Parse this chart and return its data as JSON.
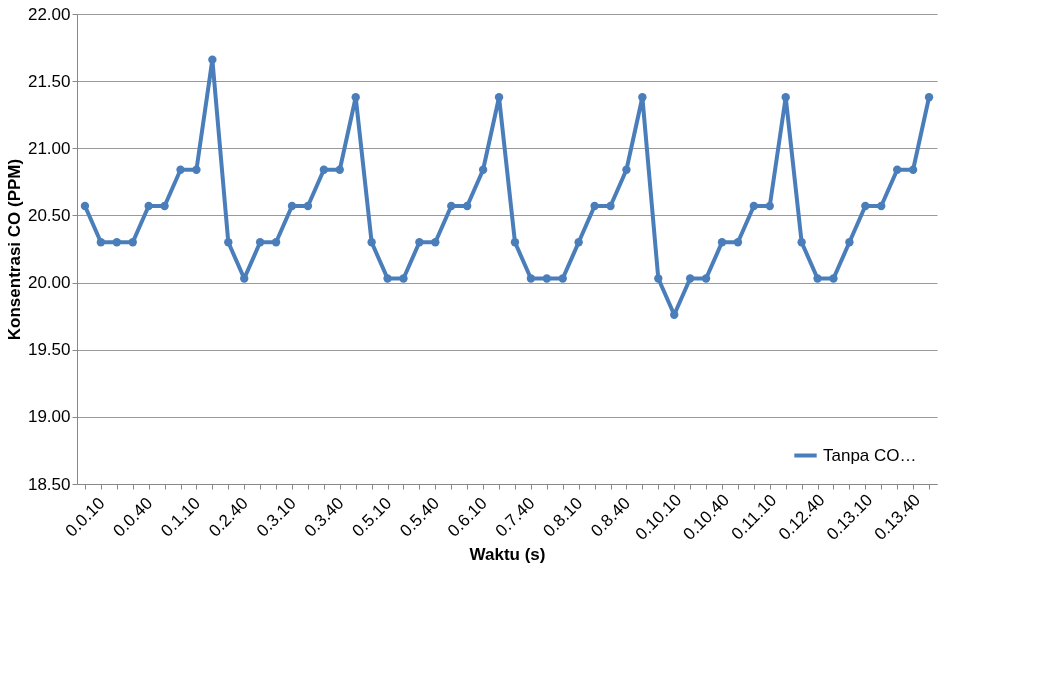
{
  "chart_data": {
    "type": "line",
    "xlabel": "Waktu (s)",
    "ylabel": "Konsentrasi CO (PPM)",
    "categories": [
      "0.0.10",
      null,
      null,
      "0.0.40",
      null,
      null,
      "0.1.10",
      null,
      null,
      "0.2.40",
      null,
      null,
      "0.3.10",
      null,
      null,
      "0.3.40",
      null,
      null,
      "0.5.10",
      null,
      null,
      "0.5.40",
      null,
      null,
      "0.6.10",
      null,
      null,
      "0.7.40",
      null,
      null,
      "0.8.10",
      null,
      null,
      "0.8.40",
      null,
      null,
      "0.10.10",
      null,
      null,
      "0.10.40",
      null,
      null,
      "0.11.10",
      null,
      null,
      "0.12.40",
      null,
      null,
      "0.13.10",
      null,
      null,
      "0.13.40",
      null,
      null
    ],
    "series": [
      {
        "name": "Tanpa CO…",
        "color": "#4a7ebb",
        "values": [
          20.57,
          20.3,
          20.3,
          20.3,
          20.57,
          20.57,
          20.84,
          20.84,
          21.66,
          20.3,
          20.03,
          20.3,
          20.3,
          20.57,
          20.57,
          20.84,
          20.84,
          21.38,
          20.3,
          20.03,
          20.03,
          20.3,
          20.3,
          20.57,
          20.57,
          20.84,
          21.38,
          20.3,
          20.03,
          20.03,
          20.03,
          20.3,
          20.57,
          20.57,
          20.84,
          21.38,
          20.03,
          19.76,
          20.03,
          20.03,
          20.3,
          20.3,
          20.57,
          20.57,
          21.38,
          20.3,
          20.03,
          20.03,
          20.3,
          20.57,
          20.57,
          20.84,
          20.84,
          21.38
        ]
      }
    ],
    "ylim": [
      18.5,
      22.0
    ],
    "yticks": [
      {
        "value": 18.5,
        "label": "18.50"
      },
      {
        "value": 19.0,
        "label": "19.00"
      },
      {
        "value": 19.5,
        "label": "19.50"
      },
      {
        "value": 20.0,
        "label": "20.00"
      },
      {
        "value": 20.5,
        "label": "20.50"
      },
      {
        "value": 21.0,
        "label": "21.00"
      },
      {
        "value": 21.5,
        "label": "21.50"
      },
      {
        "value": 22.0,
        "label": "22.00"
      }
    ],
    "grid": "y",
    "legend": "bottom right",
    "marker": "circle",
    "line_style": "solid"
  }
}
